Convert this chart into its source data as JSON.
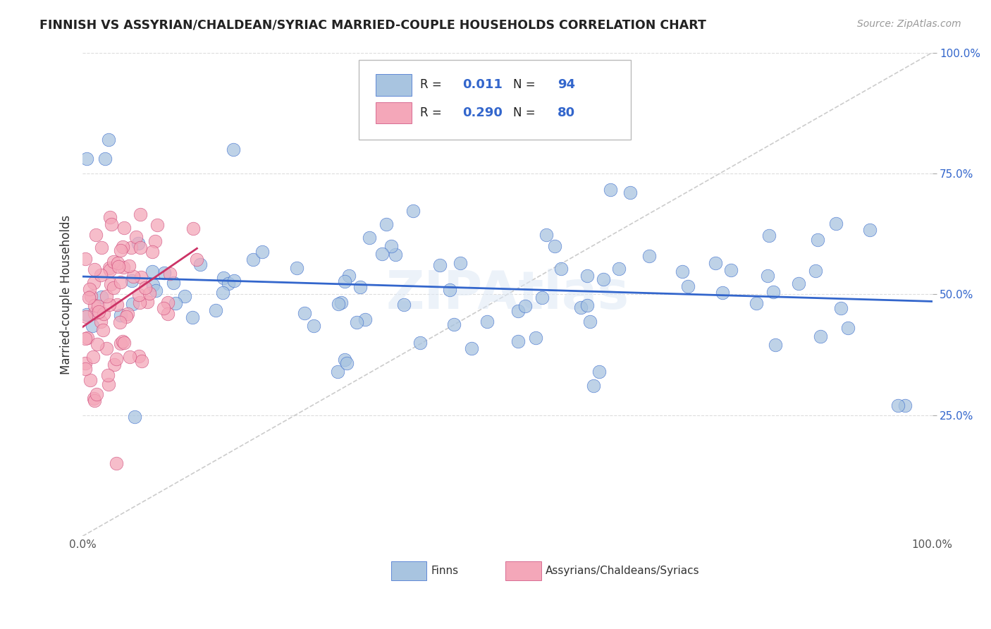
{
  "title": "FINNISH VS ASSYRIAN/CHALDEAN/SYRIAC MARRIED-COUPLE HOUSEHOLDS CORRELATION CHART",
  "source": "Source: ZipAtlas.com",
  "ylabel": "Married-couple Households",
  "R1": "0.011",
  "N1": "94",
  "R2": "0.290",
  "N2": "80",
  "color1": "#a8c4e0",
  "color2": "#f4a7b9",
  "line_color1": "#3366cc",
  "line_color2": "#cc3366",
  "edge_color2": "#cc4477",
  "background": "#ffffff",
  "grid_color": "#dddddd",
  "legend_label1": "Finns",
  "legend_label2": "Assyrians/Chaldeans/Syriacs",
  "watermark": "ZIPAtlas"
}
